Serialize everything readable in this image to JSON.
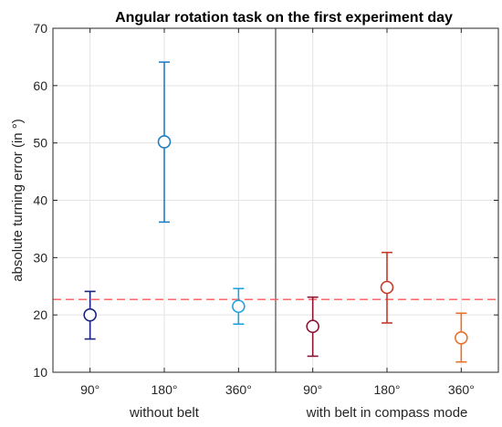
{
  "chart_data": {
    "type": "errorbar",
    "title": "Angular rotation task on the first experiment day",
    "ylabel": "absolute turning error (in °)",
    "xlabel": "",
    "ylim": [
      10,
      70
    ],
    "yticks": [
      "10",
      "20",
      "30",
      "40",
      "50",
      "60",
      "70"
    ],
    "grid": true,
    "categories": [
      "90°",
      "180°",
      "360°",
      "90°",
      "180°",
      "360°"
    ],
    "groups": [
      "without belt",
      "with belt in compass mode"
    ],
    "points": [
      {
        "label": "90°",
        "group": "without belt",
        "value": 20.0,
        "lower": 15.8,
        "upper": 24.1,
        "color": "#1a237e"
      },
      {
        "label": "180°",
        "group": "without belt",
        "value": 50.2,
        "lower": 36.2,
        "upper": 64.1,
        "color": "#1f7fc4"
      },
      {
        "label": "360°",
        "group": "without belt",
        "value": 21.5,
        "lower": 18.4,
        "upper": 24.6,
        "color": "#21a2de"
      },
      {
        "label": "90°",
        "group": "with belt in compass mode",
        "value": 18.0,
        "lower": 12.8,
        "upper": 23.1,
        "color": "#8b1535"
      },
      {
        "label": "180°",
        "group": "with belt in compass mode",
        "value": 24.8,
        "lower": 18.6,
        "upper": 30.9,
        "color": "#c63a2a"
      },
      {
        "label": "360°",
        "group": "with belt in compass mode",
        "value": 16.0,
        "lower": 11.8,
        "upper": 20.3,
        "color": "#e8722a"
      }
    ],
    "reference_line": {
      "value": 22.7,
      "color": "#ff5a5a",
      "style": "dashed"
    },
    "separator_after_index": 2
  }
}
